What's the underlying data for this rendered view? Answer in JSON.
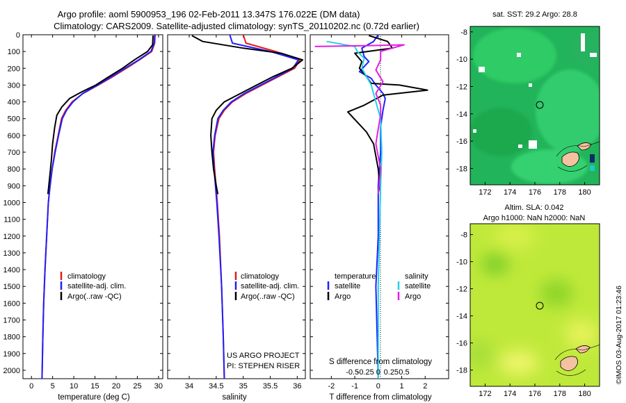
{
  "header": {
    "title_line1": "Argo profile: aoml 5900953_196 02-Feb-2011 13.347S 176.022E (DM data)",
    "title_line2": "Climatology: CARS2009. Satellite-adjusted climatology: synTS_20110202.nc (0.72d earlier)"
  },
  "colors": {
    "climatology": "#e41a1c",
    "satellite": "#1f1fff",
    "argo": "#000000",
    "satellite_salinity": "#22d3e6",
    "argo_salinity": "#e020e0",
    "sst_ocean": "#2bc46a",
    "sla_field": "#c7ee36",
    "land": "#f4c2a0"
  },
  "credits": {
    "project": "US ARGO PROJECT",
    "pi": "PI: STEPHEN RISER",
    "watermark": "©IMOS 03-Aug-2017 01:23:46"
  },
  "chart_data": [
    {
      "type": "line",
      "name": "temperature-profile",
      "xlabel": "temperature (deg C)",
      "ylabel": "",
      "xlim": [
        -2,
        31
      ],
      "ylim": [
        2050,
        0
      ],
      "xticks": [
        0,
        5,
        10,
        15,
        20,
        25,
        30
      ],
      "yticks": [
        0,
        100,
        200,
        300,
        400,
        500,
        600,
        700,
        800,
        900,
        1000,
        1100,
        1200,
        1300,
        1400,
        1500,
        1600,
        1700,
        1800,
        1900,
        2000
      ],
      "legend": [
        "climatology",
        "satellite-adj. clim.",
        "Argo(..raw -QC)"
      ],
      "series": [
        {
          "name": "climatology",
          "color": "#e41a1c",
          "points": [
            [
              29.2,
              0
            ],
            [
              29.1,
              50
            ],
            [
              28.4,
              100
            ],
            [
              25.5,
              150
            ],
            [
              22.4,
              200
            ],
            [
              19.2,
              250
            ],
            [
              15.8,
              300
            ],
            [
              12.2,
              350
            ],
            [
              9.6,
              400
            ],
            [
              8.1,
              450
            ],
            [
              7.1,
              500
            ],
            [
              6.3,
              600
            ],
            [
              5.5,
              700
            ],
            [
              4.9,
              800
            ],
            [
              4.4,
              900
            ],
            [
              4.0,
              1000
            ],
            [
              3.6,
              1200
            ],
            [
              3.2,
              1400
            ],
            [
              2.9,
              1600
            ],
            [
              2.7,
              1800
            ],
            [
              2.5,
              2050
            ]
          ]
        },
        {
          "name": "satellite",
          "color": "#1f1fff",
          "points": [
            [
              29.1,
              0
            ],
            [
              29.0,
              50
            ],
            [
              28.2,
              100
            ],
            [
              25.3,
              150
            ],
            [
              22.1,
              200
            ],
            [
              18.9,
              250
            ],
            [
              15.6,
              300
            ],
            [
              12.1,
              350
            ],
            [
              9.8,
              400
            ],
            [
              8.3,
              450
            ],
            [
              7.3,
              500
            ],
            [
              6.4,
              600
            ],
            [
              5.6,
              700
            ],
            [
              4.9,
              800
            ],
            [
              4.4,
              900
            ],
            [
              4.0,
              1000
            ],
            [
              3.6,
              1200
            ],
            [
              3.2,
              1400
            ],
            [
              2.9,
              1600
            ],
            [
              2.7,
              1800
            ],
            [
              2.5,
              2050
            ]
          ]
        },
        {
          "name": "argo",
          "color": "#000000",
          "points": [
            [
              28.7,
              5
            ],
            [
              28.6,
              60
            ],
            [
              27.4,
              100
            ],
            [
              24.3,
              150
            ],
            [
              21.5,
              200
            ],
            [
              18.3,
              250
            ],
            [
              15.2,
              300
            ],
            [
              11.9,
              340
            ],
            [
              9.0,
              380
            ],
            [
              7.2,
              430
            ],
            [
              6.0,
              480
            ],
            [
              5.5,
              550
            ],
            [
              5.0,
              650
            ],
            [
              4.7,
              750
            ],
            [
              4.3,
              850
            ],
            [
              3.9,
              950
            ]
          ]
        }
      ]
    },
    {
      "type": "line",
      "name": "salinity-profile",
      "xlabel": "salinity",
      "xlim": [
        33.6,
        36.15
      ],
      "ylim": [
        2050,
        0
      ],
      "xticks": [
        34,
        34.5,
        35,
        35.5,
        36
      ],
      "legend": [
        "climatology",
        "satellite-adj. clim.",
        "Argo(..raw -QC)"
      ],
      "series": [
        {
          "name": "climatology",
          "color": "#e41a1c",
          "points": [
            [
              35.0,
              0
            ],
            [
              35.05,
              50
            ],
            [
              35.6,
              100
            ],
            [
              36.05,
              150
            ],
            [
              35.95,
              200
            ],
            [
              35.65,
              250
            ],
            [
              35.35,
              300
            ],
            [
              35.05,
              350
            ],
            [
              34.8,
              400
            ],
            [
              34.65,
              450
            ],
            [
              34.55,
              500
            ],
            [
              34.48,
              600
            ],
            [
              34.45,
              700
            ],
            [
              34.47,
              800
            ],
            [
              34.52,
              1000
            ],
            [
              34.56,
              1200
            ],
            [
              34.6,
              1500
            ],
            [
              34.63,
              1800
            ],
            [
              34.65,
              2050
            ]
          ]
        },
        {
          "name": "satellite",
          "color": "#1f1fff",
          "points": [
            [
              34.75,
              0
            ],
            [
              34.8,
              50
            ],
            [
              35.5,
              100
            ],
            [
              36.02,
              150
            ],
            [
              35.92,
              200
            ],
            [
              35.62,
              250
            ],
            [
              35.32,
              300
            ],
            [
              35.02,
              350
            ],
            [
              34.78,
              400
            ],
            [
              34.63,
              450
            ],
            [
              34.53,
              500
            ],
            [
              34.47,
              600
            ],
            [
              34.44,
              700
            ],
            [
              34.46,
              800
            ],
            [
              34.51,
              1000
            ],
            [
              34.55,
              1200
            ],
            [
              34.6,
              1500
            ],
            [
              34.63,
              1800
            ],
            [
              34.65,
              2050
            ]
          ]
        },
        {
          "name": "argo",
          "color": "#000000",
          "points": [
            [
              34.05,
              5
            ],
            [
              34.25,
              40
            ],
            [
              35.0,
              80
            ],
            [
              35.7,
              110
            ],
            [
              36.1,
              150
            ],
            [
              35.9,
              200
            ],
            [
              35.55,
              250
            ],
            [
              35.25,
              300
            ],
            [
              34.95,
              350
            ],
            [
              34.65,
              400
            ],
            [
              34.5,
              450
            ],
            [
              34.42,
              500
            ],
            [
              34.4,
              600
            ],
            [
              34.42,
              700
            ],
            [
              34.45,
              800
            ],
            [
              34.5,
              900
            ],
            [
              34.53,
              950
            ]
          ]
        }
      ]
    },
    {
      "type": "line",
      "name": "difference-profile",
      "xlabel": "T difference from climatology",
      "x2label": "S difference from climatology",
      "xlim": [
        -2.9,
        3.0
      ],
      "ylim": [
        2050,
        0
      ],
      "xticks": [
        -2,
        -1,
        0,
        1,
        2
      ],
      "x2ticks": [
        -0.5,
        -0.25,
        0,
        0.25,
        0.5
      ],
      "legend_temperature": [
        "temperature",
        "satellite",
        "Argo"
      ],
      "legend_salinity": [
        "salinity",
        "satellite",
        "Argo"
      ],
      "series": [
        {
          "name": "T satellite",
          "color": "#1f1fff",
          "points": [
            [
              0.0,
              0
            ],
            [
              -0.2,
              40
            ],
            [
              -0.7,
              80
            ],
            [
              -0.6,
              130
            ],
            [
              -0.4,
              160
            ],
            [
              -0.8,
              220
            ],
            [
              -0.3,
              260
            ],
            [
              -0.1,
              300
            ],
            [
              0.2,
              350
            ],
            [
              0.3,
              380
            ],
            [
              0.2,
              450
            ],
            [
              0.1,
              550
            ],
            [
              0.1,
              700
            ],
            [
              0.0,
              900
            ],
            [
              0.0,
              1200
            ],
            [
              -0.1,
              1500
            ],
            [
              0.0,
              2050
            ]
          ]
        },
        {
          "name": "T argo",
          "color": "#000000",
          "points": [
            [
              -0.4,
              5
            ],
            [
              0.4,
              40
            ],
            [
              0.6,
              80
            ],
            [
              -1.0,
              110
            ],
            [
              -0.7,
              160
            ],
            [
              -0.8,
              200
            ],
            [
              -0.5,
              250
            ],
            [
              -0.3,
              290
            ],
            [
              0.9,
              300
            ],
            [
              2.1,
              330
            ],
            [
              0.2,
              360
            ],
            [
              -0.6,
              420
            ],
            [
              -1.3,
              460
            ],
            [
              -0.9,
              520
            ],
            [
              -0.5,
              580
            ],
            [
              -0.2,
              650
            ],
            [
              0.0,
              800
            ],
            [
              0.1,
              950
            ]
          ]
        },
        {
          "name": "S satellite",
          "color": "#22d3e6",
          "points": [
            [
              -2.2,
              40
            ],
            [
              -1.0,
              70
            ],
            [
              -0.9,
              100
            ],
            [
              -0.6,
              140
            ],
            [
              -0.7,
              200
            ],
            [
              -0.3,
              300
            ],
            [
              -0.1,
              400
            ],
            [
              0.1,
              500
            ],
            [
              0.15,
              700
            ],
            [
              0.1,
              900
            ],
            [
              0.05,
              1200
            ],
            [
              0.0,
              1500
            ],
            [
              0.0,
              2050
            ]
          ]
        },
        {
          "name": "S argo",
          "color": "#e020e0",
          "points": [
            [
              -2.7,
              70
            ],
            [
              -0.5,
              65
            ],
            [
              1.1,
              60
            ],
            [
              0.1,
              100
            ],
            [
              0.1,
              150
            ],
            [
              -0.1,
              210
            ],
            [
              0.2,
              280
            ],
            [
              -0.1,
              350
            ],
            [
              0.1,
              420
            ],
            [
              0.1,
              480
            ],
            [
              0.0,
              560
            ],
            [
              -0.1,
              650
            ],
            [
              0.1,
              800
            ],
            [
              0.0,
              950
            ]
          ]
        }
      ]
    },
    {
      "type": "heatmap",
      "name": "sst-map",
      "title": "sat. SST: 29.2 Argo: 28.8",
      "xlim": [
        170.8,
        181.2
      ],
      "ylim": [
        -19.2,
        -7.6
      ],
      "xticks": [
        172,
        174,
        176,
        178,
        180
      ],
      "yticks": [
        -8,
        -10,
        -12,
        -14,
        -16,
        -18
      ],
      "float_location": [
        176.0,
        -13.35
      ]
    },
    {
      "type": "heatmap",
      "name": "sla-map",
      "title_line1": "Altim. SLA: 0.042",
      "title_line2": "Argo h1000: NaN h2000: NaN",
      "xlim": [
        170.8,
        181.2
      ],
      "ylim": [
        -19.2,
        -7.2
      ],
      "xticks": [
        172,
        174,
        176,
        178,
        180
      ],
      "yticks": [
        -8,
        -10,
        -12,
        -14,
        -16,
        -18
      ],
      "float_location": [
        176.0,
        -13.35
      ]
    }
  ]
}
